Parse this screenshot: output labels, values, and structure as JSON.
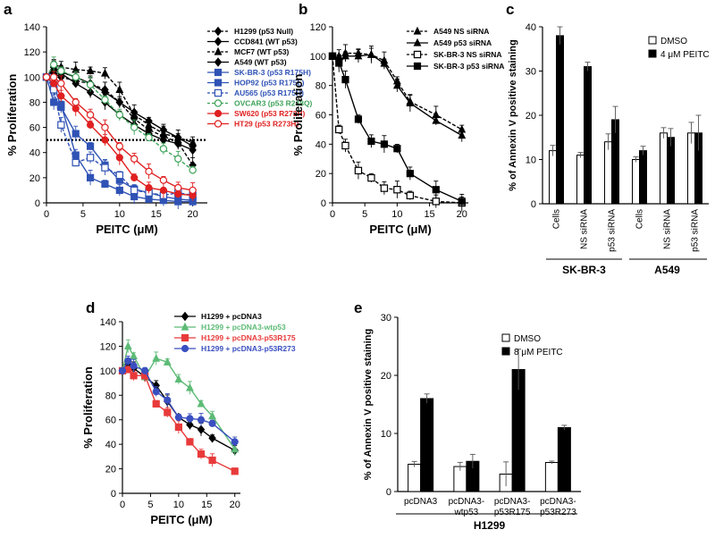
{
  "colors": {
    "blue": "#2f52b5",
    "red": "#e02020",
    "green": "#3fa35a",
    "black": "#000000",
    "gray": "#7a7a7a",
    "d_red": "#e83a3a",
    "d_green": "#5dbb76",
    "d_blue": "#3a4fc0"
  },
  "chart_data": [
    {
      "panel": "a",
      "type": "line",
      "xlabel": "PEITC (μM)",
      "ylabel": "% Proliferation",
      "xlim": [
        0,
        22
      ],
      "ylim": [
        0,
        140
      ],
      "xticks": [
        "0",
        "5",
        "10",
        "15",
        "20"
      ],
      "yticks": [
        "0",
        "20",
        "40",
        "60",
        "80",
        "100",
        "120",
        "140"
      ],
      "reference_line": {
        "y": 50,
        "style": "dotted"
      },
      "series": [
        {
          "name": "H1299 (p53 Null)",
          "color": "black",
          "marker": "diamond",
          "dash": true,
          "x": [
            0,
            1,
            2,
            4,
            6,
            8,
            10,
            12,
            14,
            16,
            18,
            20
          ],
          "y": [
            100,
            103,
            100,
            97,
            95,
            90,
            80,
            67,
            58,
            53,
            48,
            30
          ]
        },
        {
          "name": "CCD841 (WT p53)",
          "color": "black",
          "marker": "diamond",
          "dash": false,
          "x": [
            0,
            1,
            2,
            4,
            6,
            8,
            10,
            12,
            14,
            16,
            18,
            20
          ],
          "y": [
            100,
            108,
            104,
            100,
            95,
            88,
            80,
            72,
            65,
            58,
            52,
            45
          ]
        },
        {
          "name": "MCF7 (WT p53)",
          "color": "black",
          "marker": "triangle",
          "dash": true,
          "x": [
            0,
            1,
            2,
            4,
            6,
            8,
            10,
            12,
            14,
            16,
            18,
            20
          ],
          "y": [
            100,
            110,
            108,
            106,
            105,
            103,
            90,
            70,
            62,
            55,
            52,
            48
          ]
        },
        {
          "name": "A549 (WT p53)",
          "color": "black",
          "marker": "diamond",
          "dash": false,
          "x": [
            0,
            1,
            2,
            4,
            6,
            8,
            10,
            12,
            14,
            16,
            18,
            20
          ],
          "y": [
            100,
            106,
            103,
            95,
            88,
            80,
            70,
            62,
            55,
            50,
            47,
            42
          ]
        },
        {
          "name": "SK-BR-3 (p53 R175H)",
          "color": "blue",
          "marker": "square",
          "dash": false,
          "x": [
            0,
            1,
            2,
            4,
            6,
            8,
            10,
            12,
            14,
            16,
            18,
            20
          ],
          "y": [
            100,
            80,
            78,
            38,
            20,
            15,
            10,
            5,
            3,
            2,
            1,
            1
          ]
        },
        {
          "name": "HOP92 (p53 R175L)",
          "color": "blue",
          "marker": "square",
          "dash": false,
          "x": [
            0,
            1,
            2,
            4,
            6,
            8,
            10,
            12,
            14,
            16,
            18,
            20
          ],
          "y": [
            100,
            94,
            76,
            55,
            45,
            30,
            18,
            11,
            8,
            5,
            3,
            2
          ]
        },
        {
          "name": "AU565 (p53 R175H)",
          "color": "blue",
          "marker": "square-open",
          "dash": true,
          "x": [
            0,
            1,
            2,
            4,
            6,
            8,
            10,
            12,
            14,
            16,
            18,
            20
          ],
          "y": [
            100,
            90,
            62,
            32,
            36,
            28,
            22,
            10,
            8,
            6,
            8,
            6
          ]
        },
        {
          "name": "OVCAR3 (p53 R248Q)",
          "color": "green",
          "marker": "circle-open",
          "dash": true,
          "x": [
            0,
            1,
            2,
            4,
            6,
            8,
            10,
            12,
            14,
            16,
            18,
            20
          ],
          "y": [
            100,
            110,
            105,
            100,
            94,
            82,
            70,
            60,
            52,
            43,
            35,
            26
          ]
        },
        {
          "name": "SW620 (p53 R273H)",
          "color": "red",
          "marker": "circle",
          "dash": false,
          "x": [
            0,
            1,
            2,
            4,
            6,
            8,
            10,
            12,
            14,
            16,
            18,
            20
          ],
          "y": [
            100,
            95,
            85,
            75,
            62,
            50,
            36,
            20,
            12,
            10,
            7,
            6
          ]
        },
        {
          "name": "HT29 (p53 R273H)",
          "color": "red",
          "marker": "circle-open",
          "dash": false,
          "x": [
            0,
            1,
            2,
            4,
            6,
            8,
            10,
            12,
            14,
            16,
            18,
            20
          ],
          "y": [
            100,
            100,
            95,
            80,
            70,
            60,
            45,
            35,
            25,
            18,
            12,
            10
          ]
        }
      ]
    },
    {
      "panel": "b",
      "type": "line",
      "xlabel": "PEITC (μM)",
      "ylabel": "% Proliferation",
      "xlim": [
        0,
        21
      ],
      "ylim": [
        0,
        120
      ],
      "xticks": [
        "0",
        "5",
        "10",
        "15",
        "20"
      ],
      "yticks": [
        "0",
        "20",
        "40",
        "60",
        "80",
        "100",
        "120"
      ],
      "series": [
        {
          "name": "A549 NS siRNA",
          "color": "black",
          "marker": "triangle",
          "dash": true,
          "x": [
            0,
            1,
            2,
            4,
            6,
            8,
            10,
            12,
            16,
            20
          ],
          "y": [
            100,
            100,
            102,
            102,
            101,
            97,
            83,
            69,
            60,
            50
          ]
        },
        {
          "name": "A549 p53 siRNA",
          "color": "black",
          "marker": "triangle",
          "dash": false,
          "x": [
            0,
            1,
            2,
            4,
            6,
            8,
            10,
            12,
            16,
            20
          ],
          "y": [
            100,
            95,
            100,
            100,
            101,
            95,
            80,
            68,
            56,
            46
          ]
        },
        {
          "name": "SK-BR-3 NS siRNA",
          "color": "black",
          "marker": "square-open",
          "dash": true,
          "x": [
            0,
            1,
            2,
            4,
            6,
            8,
            10,
            12,
            16,
            20
          ],
          "y": [
            100,
            50,
            39,
            22,
            17,
            10,
            9,
            5,
            1,
            0
          ]
        },
        {
          "name": "SK-BR-3 p53 siRNA",
          "color": "black",
          "marker": "square",
          "dash": false,
          "x": [
            0,
            1,
            2,
            4,
            6,
            8,
            10,
            12,
            16,
            20
          ],
          "y": [
            100,
            96,
            84,
            57,
            42,
            40,
            37,
            20,
            9,
            1
          ]
        }
      ]
    },
    {
      "panel": "c",
      "type": "bar",
      "ylabel": "% of Annexin V positive staining",
      "ylim": [
        0,
        40
      ],
      "yticks": [
        "0",
        "10",
        "20",
        "30",
        "40"
      ],
      "categories": [
        "Cells",
        "NS siRNA",
        "p53 siRNA",
        "Cells",
        "NS siRNA",
        "p53 siRNA"
      ],
      "groups": [
        "SK-BR-3",
        "A549"
      ],
      "series": [
        {
          "name": "DMSO",
          "fill": "open",
          "values": [
            12,
            11,
            14,
            10,
            16,
            16
          ]
        },
        {
          "name": "4 μM PEITC",
          "fill": "solid",
          "values": [
            38,
            31,
            19,
            12,
            15,
            16
          ]
        }
      ]
    },
    {
      "panel": "d",
      "type": "line",
      "xlabel": "PEITC (μM)",
      "ylabel": "% Proliferation",
      "xlim": [
        0,
        21
      ],
      "ylim": [
        0,
        140
      ],
      "xticks": [
        "0",
        "5",
        "10",
        "15",
        "20"
      ],
      "yticks": [
        "0",
        "20",
        "40",
        "60",
        "80",
        "100",
        "120",
        "140"
      ],
      "series": [
        {
          "name": "H1299 + pcDNA3",
          "color": "black",
          "marker": "diamond",
          "x": [
            0,
            1,
            2,
            4,
            6,
            8,
            10,
            12,
            14,
            16,
            20
          ],
          "y": [
            100,
            105,
            102,
            95,
            88,
            75,
            62,
            56,
            52,
            45,
            35
          ]
        },
        {
          "name": "H1299 + pcDNA3-wtp53",
          "color": "d_green",
          "marker": "triangle",
          "x": [
            0,
            1,
            2,
            4,
            6,
            8,
            10,
            12,
            14,
            16,
            20
          ],
          "y": [
            100,
            120,
            112,
            95,
            110,
            107,
            93,
            86,
            73,
            63,
            36
          ]
        },
        {
          "name": "H1299 + pcDNA3-p53R175",
          "color": "d_red",
          "marker": "square",
          "x": [
            0,
            1,
            2,
            4,
            6,
            8,
            10,
            12,
            14,
            16,
            20
          ],
          "y": [
            100,
            101,
            96,
            96,
            73,
            66,
            54,
            42,
            32,
            27,
            18
          ]
        },
        {
          "name": "H1299 + pcDNA3-p53R273",
          "color": "d_blue",
          "marker": "circle",
          "x": [
            0,
            1,
            2,
            4,
            6,
            8,
            10,
            12,
            14,
            16,
            20
          ],
          "y": [
            100,
            108,
            104,
            100,
            83,
            76,
            62,
            61,
            60,
            57,
            42
          ]
        }
      ]
    },
    {
      "panel": "e",
      "type": "bar",
      "ylabel": "% of Annexin V positive staining",
      "ylim": [
        0,
        30
      ],
      "yticks": [
        "0",
        "10",
        "20",
        "30"
      ],
      "categories": [
        "pcDNA3",
        "pcDNA3-\nwtp53",
        "pcDNA3-\np53R175",
        "pcDNA3-\np53R273"
      ],
      "group_label": "H1299",
      "series": [
        {
          "name": "DMSO",
          "fill": "open",
          "values": [
            4.7,
            4.3,
            3.0,
            5.0
          ]
        },
        {
          "name": "8 μM PEITC",
          "fill": "solid",
          "values": [
            16.0,
            5.2,
            21.0,
            11.0
          ]
        }
      ]
    }
  ]
}
